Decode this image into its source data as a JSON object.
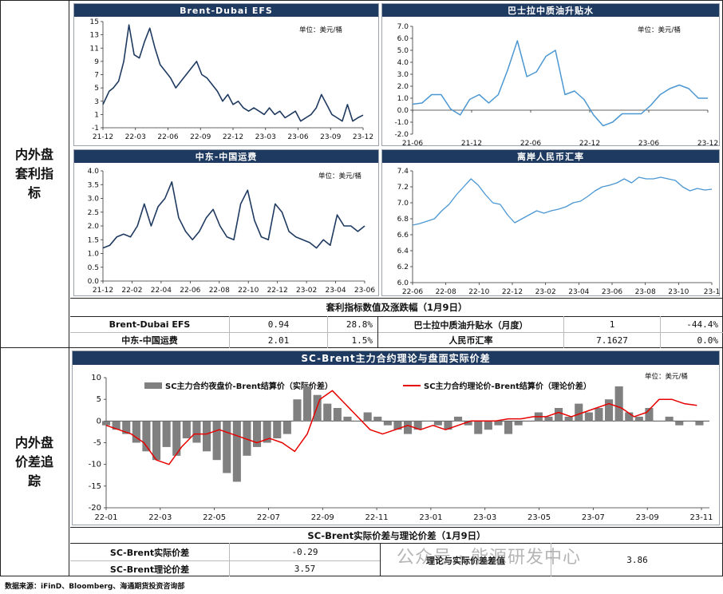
{
  "sections": {
    "top_label": "内外盘套利指标",
    "bottom_label": "内外盘价差追踪"
  },
  "colors": {
    "title_bg": "#1f3a60",
    "dark_line": "#1f3a60",
    "light_line": "#4b97d2",
    "bar": "#808080",
    "red_line": "#e60000"
  },
  "chart_data": [
    {
      "id": "efs",
      "type": "line",
      "title": "Brent-Dubai EFS",
      "unit": "单位：美元/桶",
      "ylim": [
        -1,
        15
      ],
      "yticks": [
        "15",
        "13",
        "11",
        "9",
        "7",
        "5",
        "3",
        "1",
        "-1"
      ],
      "xticks": [
        "21-12",
        "22-03",
        "22-06",
        "22-09",
        "22-12",
        "23-03",
        "23-06",
        "23-09",
        "23-12"
      ],
      "x": [
        0,
        0.3,
        0.6,
        1.0,
        1.5,
        2.0,
        2.5,
        3.0,
        3.5,
        4.0,
        4.5,
        5.0,
        5.5,
        6.0,
        6.5,
        7.0,
        7.5,
        8.0,
        8.5,
        9.0,
        9.5,
        10.0,
        10.5,
        11.0,
        11.5,
        12.0,
        12.5,
        13.0,
        13.5,
        14.0,
        14.5,
        15.0,
        15.5,
        16.0,
        16.5,
        17.0,
        17.5,
        18.0,
        18.5,
        19.0,
        19.5,
        20.0,
        20.5,
        21.0,
        21.5,
        22.0,
        22.5,
        23.0,
        23.5,
        24.0,
        24.5,
        25.0
      ],
      "y": [
        2.5,
        3.5,
        4.5,
        5.0,
        6.0,
        9.0,
        14.5,
        10.0,
        9.5,
        12.0,
        14.0,
        11.0,
        8.5,
        7.5,
        6.5,
        5.0,
        6.0,
        7.0,
        8.0,
        9.0,
        7.0,
        6.5,
        5.5,
        4.5,
        3.0,
        4.0,
        2.5,
        3.0,
        2.0,
        1.5,
        2.0,
        1.5,
        1.0,
        2.0,
        1.0,
        1.5,
        0.5,
        1.0,
        1.5,
        0.0,
        0.5,
        1.0,
        2.0,
        4.0,
        2.5,
        1.0,
        0.5,
        0.0,
        2.5,
        0.0,
        0.5,
        0.9
      ],
      "xrange": [
        0,
        25
      ]
    },
    {
      "id": "basrah",
      "type": "line",
      "title": "巴士拉中质油升贴水",
      "unit": "单位：美元/桶",
      "ylim": [
        -2.0,
        7.0
      ],
      "yticks": [
        "7.0",
        "6.0",
        "5.0",
        "4.0",
        "3.0",
        "2.0",
        "1.0",
        "0.0",
        "-1.0",
        "-2.0"
      ],
      "xticks": [
        "21-06",
        "21-12",
        "22-06",
        "22-12",
        "23-06",
        "23-12"
      ],
      "x": [
        0,
        1,
        2,
        3,
        4,
        5,
        6,
        7,
        8,
        9,
        10,
        11,
        12,
        13,
        14,
        15,
        16,
        17,
        18,
        19,
        20,
        21,
        22,
        23,
        24,
        25,
        26,
        27,
        28,
        29,
        30,
        31
      ],
      "y": [
        0.5,
        0.6,
        1.3,
        1.3,
        0.1,
        -0.4,
        0.9,
        1.3,
        0.6,
        1.3,
        3.4,
        5.8,
        2.8,
        3.2,
        4.5,
        5.0,
        1.3,
        1.6,
        0.9,
        -0.4,
        -1.3,
        -1.0,
        -0.3,
        -0.3,
        -0.3,
        0.4,
        1.3,
        1.8,
        2.1,
        1.8,
        1.0,
        1.0
      ],
      "xrange": [
        0,
        31
      ]
    },
    {
      "id": "freight",
      "type": "line",
      "title": "中东-中国运费",
      "unit": "单位：美元/桶",
      "ylim": [
        0.0,
        4.0
      ],
      "yticks": [
        "4.0",
        "3.5",
        "3.0",
        "2.5",
        "2.0",
        "1.5",
        "1.0",
        "0.5",
        "0.0"
      ],
      "xticks": [
        "21-12",
        "22-02",
        "22-04",
        "22-06",
        "22-08",
        "22-10",
        "22-12",
        "23-02",
        "23-04",
        "23-06"
      ],
      "x": [
        0,
        0.5,
        1.0,
        1.5,
        2.0,
        2.5,
        3.0,
        3.5,
        4.0,
        4.5,
        5.0,
        5.5,
        6.0,
        6.5,
        7.0,
        7.5,
        8.0,
        8.5,
        9.0,
        9.5,
        10.0,
        10.5,
        11.0,
        11.5,
        12.0,
        12.5,
        13.0,
        13.5,
        14.0,
        14.5,
        15.0,
        15.5,
        16.0,
        16.5,
        17.0,
        17.5,
        18.0,
        18.5,
        19.0
      ],
      "y": [
        1.2,
        1.3,
        1.6,
        1.7,
        1.6,
        2.0,
        2.8,
        2.0,
        2.7,
        3.0,
        3.6,
        2.3,
        1.8,
        1.5,
        1.8,
        2.3,
        2.6,
        2.0,
        1.6,
        1.5,
        2.8,
        3.3,
        2.2,
        1.6,
        1.5,
        2.8,
        2.5,
        1.8,
        1.6,
        1.5,
        1.4,
        1.2,
        1.5,
        1.3,
        2.4,
        2.0,
        2.0,
        1.8,
        2.0
      ],
      "xrange": [
        0,
        19
      ]
    },
    {
      "id": "cnh",
      "type": "line",
      "title": "离岸人民币汇率",
      "unit": "",
      "ylim": [
        6.0,
        7.4
      ],
      "yticks": [
        "7.4",
        "7.2",
        "7.0",
        "6.8",
        "6.6",
        "6.4",
        "6.2",
        "6.0"
      ],
      "xticks": [
        "22-06",
        "22-08",
        "22-10",
        "22-12",
        "23-02",
        "23-04",
        "23-06",
        "23-08",
        "23-10",
        "23-1"
      ],
      "x": [
        0,
        0.5,
        1.0,
        1.5,
        2.0,
        2.5,
        3.0,
        3.5,
        4.0,
        4.5,
        5.0,
        5.5,
        6.0,
        6.5,
        7.0,
        7.5,
        8.0,
        8.5,
        9.0,
        9.5,
        10.0,
        10.5,
        11.0,
        11.5,
        12.0,
        12.5,
        13.0,
        13.5,
        14.0,
        14.5,
        15.0,
        15.5,
        16.0,
        16.5,
        17.0,
        17.5,
        18.0,
        18.5,
        19.0,
        19.5,
        20.0,
        20.5
      ],
      "y": [
        6.72,
        6.74,
        6.77,
        6.8,
        6.9,
        6.98,
        7.1,
        7.2,
        7.3,
        7.22,
        7.1,
        7.0,
        6.98,
        6.85,
        6.75,
        6.8,
        6.85,
        6.9,
        6.87,
        6.9,
        6.92,
        6.95,
        7.0,
        7.02,
        7.08,
        7.15,
        7.2,
        7.22,
        7.25,
        7.3,
        7.25,
        7.32,
        7.3,
        7.3,
        7.32,
        7.3,
        7.28,
        7.2,
        7.15,
        7.18,
        7.16,
        7.17
      ],
      "xrange": [
        0,
        20.5
      ]
    },
    {
      "id": "sc_brent",
      "type": "bar+line",
      "title": "SC-Brent主力合约理论与盘面实际价差",
      "unit": "单位：美元/桶",
      "ylim": [
        -20,
        10
      ],
      "yticks": [
        "10",
        "5",
        "0",
        "-5",
        "-10",
        "-15",
        "-20"
      ],
      "xticks": [
        "22-01",
        "22-03",
        "22-05",
        "22-07",
        "22-09",
        "22-11",
        "23-01",
        "23-03",
        "23-05",
        "23-07",
        "23-09",
        "23-11"
      ],
      "xrange": [
        0,
        24
      ],
      "series": [
        {
          "name": "SC主力合约夜盘价-Brent结算价（实际价差）",
          "type": "bar",
          "x": [
            0,
            0.4,
            0.8,
            1.2,
            1.6,
            2.0,
            2.4,
            2.8,
            3.2,
            3.6,
            4.0,
            4.4,
            4.8,
            5.2,
            5.6,
            6.0,
            6.4,
            6.8,
            7.2,
            7.6,
            8.0,
            8.4,
            8.8,
            9.2,
            9.6,
            10.0,
            10.4,
            10.8,
            11.2,
            11.6,
            12.0,
            12.4,
            12.8,
            13.2,
            13.6,
            14.0,
            14.4,
            14.8,
            15.2,
            15.6,
            16.0,
            16.4,
            16.8,
            17.2,
            17.6,
            18.0,
            18.4,
            18.8,
            19.2,
            19.6,
            20.0,
            20.4,
            20.8,
            21.2,
            21.6,
            22.0,
            22.4,
            22.8,
            23.2,
            23.6
          ],
          "y": [
            -1,
            -2,
            -3,
            -5,
            -7,
            -9,
            -6,
            -8,
            -4,
            -5,
            -7,
            -9,
            -12,
            -14,
            -8,
            -6,
            -5,
            -4,
            -3,
            5,
            8,
            6,
            4,
            3,
            1,
            0,
            2,
            1,
            -1,
            -2,
            -3,
            -2,
            0,
            -1,
            -2,
            1,
            -1,
            -3,
            -2,
            -1,
            -3,
            -1,
            0,
            2,
            1,
            3,
            1,
            4,
            2,
            3,
            5,
            8,
            2,
            1,
            3,
            0,
            1,
            -1,
            0,
            -1
          ]
        },
        {
          "name": "SC主力合约理论价-Brent结算价（理论价差）",
          "type": "line",
          "x": [
            0,
            0.5,
            1.0,
            1.5,
            2.0,
            2.5,
            3.0,
            3.5,
            4.0,
            4.5,
            5.0,
            5.5,
            6.0,
            6.5,
            7.0,
            7.5,
            8.0,
            8.5,
            9.0,
            9.5,
            10.0,
            10.5,
            11.0,
            11.5,
            12.0,
            12.5,
            13.0,
            13.5,
            14.0,
            14.5,
            15.0,
            15.5,
            16.0,
            16.5,
            17.0,
            17.5,
            18.0,
            18.5,
            19.0,
            19.5,
            20.0,
            20.5,
            21.0,
            21.5,
            22.0,
            22.5,
            23.0,
            23.5
          ],
          "y": [
            -1,
            -2,
            -3,
            -5,
            -9,
            -10,
            -6,
            -3,
            -3,
            -2,
            -3,
            -4,
            -5,
            -4,
            -5,
            -7,
            -3,
            5,
            7,
            4,
            1,
            -2,
            -3,
            -2,
            -1,
            -2,
            -1,
            -2,
            -1,
            0,
            0,
            0,
            0.5,
            0.5,
            1,
            1,
            2,
            1,
            2,
            3,
            4,
            3,
            1,
            2,
            5,
            5,
            4,
            3.6
          ]
        }
      ]
    }
  ],
  "indicator_table": {
    "title": "套利指标数值及涨跌幅（1月9日）",
    "rows": [
      {
        "name1": "Brent-Dubai EFS",
        "val1": "0.94",
        "chg1": "28.8%",
        "name2": "巴士拉中质油升贴水（月度）",
        "val2": "1",
        "chg2": "-44.4%"
      },
      {
        "name1": "中东-中国运费",
        "val1": "2.01",
        "chg1": "1.5%",
        "name2": "人民币汇率",
        "val2": "7.1627",
        "chg2": "0.0%"
      }
    ]
  },
  "spread_table": {
    "title": "SC-Brent实际价差与理论价差（1月9日）",
    "actual_label": "SC-Brent实际价差",
    "actual_value": "-0.29",
    "theory_label": "SC-Brent理论价差",
    "theory_value": "3.57",
    "diff_label": "理论与实际价差差值",
    "diff_value": "3.86"
  },
  "source": "数据来源：iFinD、Bloomberg、海通期货投资咨询部",
  "watermark": "公众号 · 能源研发中心"
}
